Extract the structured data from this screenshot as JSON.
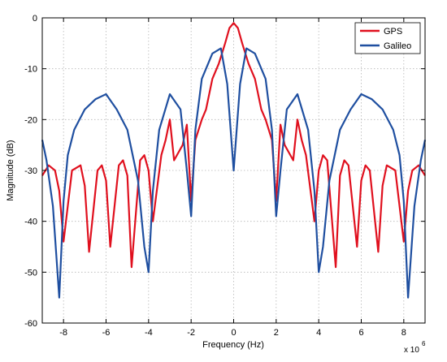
{
  "chart_data": {
    "type": "line",
    "xlabel": "Frequency (Hz)",
    "ylabel": "Magnitude (dB)",
    "x_multiplier": "x 10",
    "x_multiplier_exponent": "6",
    "xlim": [
      -9,
      9
    ],
    "ylim": [
      -60,
      0
    ],
    "x_ticks": [
      -8,
      -6,
      -4,
      -2,
      0,
      2,
      4,
      6,
      8
    ],
    "y_ticks": [
      0,
      -10,
      -20,
      -30,
      -40,
      -50,
      -60
    ],
    "grid": true,
    "legend_position": "top-right",
    "series": [
      {
        "name": "GPS",
        "color": "#e0101e",
        "x": [
          -9.0,
          -8.7,
          -8.4,
          -8.2,
          -8.0,
          -7.6,
          -7.2,
          -7.0,
          -6.8,
          -6.4,
          -6.2,
          -6.0,
          -5.8,
          -5.4,
          -5.2,
          -5.0,
          -4.8,
          -4.4,
          -4.2,
          -4.0,
          -3.8,
          -3.4,
          -3.2,
          -3.0,
          -2.8,
          -2.4,
          -2.2,
          -2.0,
          -1.8,
          -1.5,
          -1.3,
          -1.0,
          -0.7,
          -0.4,
          -0.2,
          0.0,
          0.2,
          0.4,
          0.7,
          1.0,
          1.3,
          1.5,
          1.8,
          2.0,
          2.2,
          2.4,
          2.8,
          3.0,
          3.2,
          3.4,
          3.8,
          4.0,
          4.2,
          4.4,
          4.8,
          5.0,
          5.2,
          5.4,
          5.8,
          6.0,
          6.2,
          6.4,
          6.8,
          7.0,
          7.2,
          7.6,
          8.0,
          8.2,
          8.4,
          8.7,
          9.0
        ],
        "values": [
          -31,
          -29,
          -30,
          -34,
          -44,
          -30,
          -29,
          -33,
          -46,
          -30,
          -29,
          -32,
          -45,
          -29,
          -28,
          -31,
          -49,
          -28,
          -27,
          -30,
          -40,
          -27,
          -24,
          -20,
          -28,
          -25,
          -21,
          -36,
          -24,
          -20,
          -18,
          -12,
          -9,
          -5,
          -2,
          -1,
          -2,
          -5,
          -9,
          -12,
          -18,
          -20,
          -24,
          -36,
          -21,
          -25,
          -28,
          -20,
          -24,
          -27,
          -40,
          -30,
          -27,
          -28,
          -49,
          -31,
          -28,
          -29,
          -45,
          -32,
          -29,
          -30,
          -46,
          -33,
          -29,
          -30,
          -44,
          -34,
          -30,
          -29,
          -31
        ]
      },
      {
        "name": "Galileo",
        "color": "#1f4fa0",
        "x": [
          -9.0,
          -8.8,
          -8.5,
          -8.2,
          -8.0,
          -7.8,
          -7.5,
          -7.0,
          -6.5,
          -6.0,
          -5.5,
          -5.0,
          -4.5,
          -4.2,
          -4.0,
          -3.8,
          -3.5,
          -3.0,
          -2.5,
          -2.2,
          -2.0,
          -1.8,
          -1.5,
          -1.0,
          -0.6,
          -0.3,
          0.0,
          0.3,
          0.6,
          1.0,
          1.5,
          1.8,
          2.0,
          2.2,
          2.5,
          3.0,
          3.5,
          3.8,
          4.0,
          4.2,
          4.5,
          5.0,
          5.5,
          6.0,
          6.5,
          7.0,
          7.5,
          7.8,
          8.0,
          8.2,
          8.5,
          8.8,
          9.0
        ],
        "values": [
          -24,
          -28,
          -37,
          -55,
          -36,
          -27,
          -22,
          -18,
          -16,
          -15,
          -18,
          -22,
          -32,
          -45,
          -50,
          -34,
          -22,
          -15,
          -18,
          -30,
          -39,
          -22,
          -12,
          -7,
          -6,
          -13,
          -30,
          -13,
          -6,
          -7,
          -12,
          -22,
          -39,
          -30,
          -18,
          -15,
          -22,
          -34,
          -50,
          -45,
          -32,
          -22,
          -18,
          -15,
          -16,
          -18,
          -22,
          -27,
          -36,
          -55,
          -37,
          -28,
          -24
        ]
      }
    ]
  }
}
